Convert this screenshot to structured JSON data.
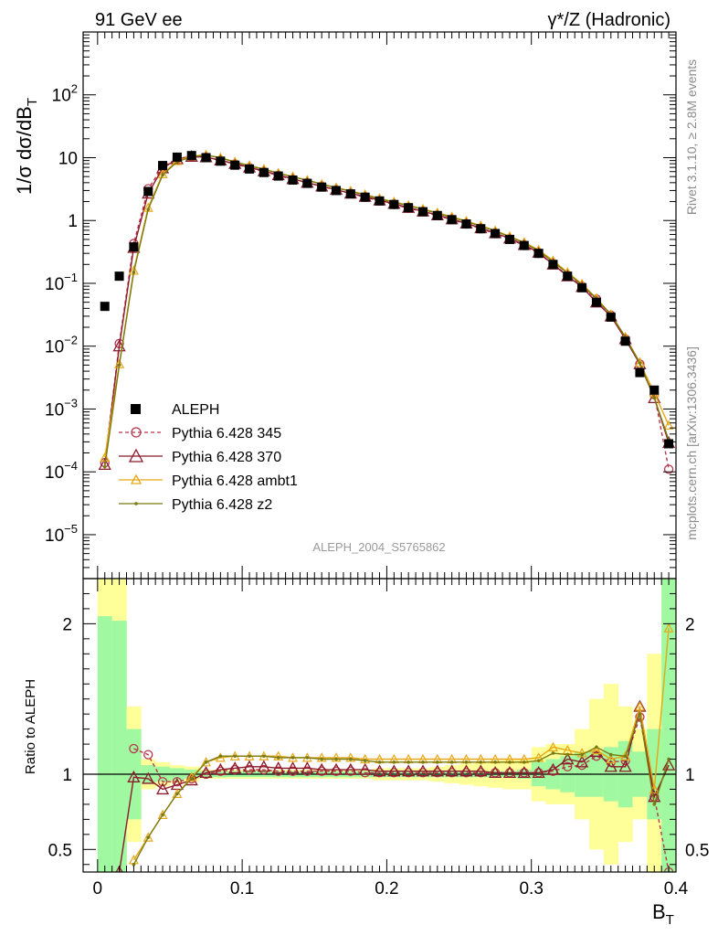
{
  "chart_data": [
    {
      "type": "scatter",
      "title_left": "91 GeV ee",
      "title_right": "γ*/Z (Hadronic)",
      "ylabel_main": "1/σ  dσ/dB",
      "ylabel_sub": "T",
      "yscale": "log",
      "ylim": [
        2e-06,
        1000
      ],
      "xlim": [
        -0.01,
        0.4
      ],
      "ytick_labels": [
        {
          "value": 1e-05,
          "base": "10",
          "exp": "−5"
        },
        {
          "value": 0.0001,
          "base": "10",
          "exp": "−4"
        },
        {
          "value": 0.001,
          "base": "10",
          "exp": "−3"
        },
        {
          "value": 0.01,
          "base": "10",
          "exp": "−2"
        },
        {
          "value": 0.1,
          "base": "10",
          "exp": "−1"
        },
        {
          "value": 1,
          "base": "1",
          "exp": ""
        },
        {
          "value": 10,
          "base": "10",
          "exp": ""
        },
        {
          "value": 100,
          "base": "10",
          "exp": "2"
        }
      ],
      "analysis_label": "ALEPH_2004_S5765862",
      "right_label_top": "Rivet 3.1.10, ≥ 2.8M events",
      "right_label_bottom": "mcplots.cern.ch [arXiv:1306.3436]",
      "legend": {
        "placement": "lower-left",
        "entries": [
          "ALEPH",
          "Pythia 6.428 345",
          "Pythia 6.428 370",
          "Pythia 6.428 ambt1",
          "Pythia 6.428 z2"
        ]
      },
      "data": {
        "name": "ALEPH",
        "x": [
          0.005,
          0.015,
          0.025,
          0.035,
          0.045,
          0.055,
          0.065,
          0.075,
          0.085,
          0.095,
          0.105,
          0.115,
          0.125,
          0.135,
          0.145,
          0.155,
          0.165,
          0.175,
          0.185,
          0.195,
          0.205,
          0.215,
          0.225,
          0.235,
          0.245,
          0.255,
          0.265,
          0.275,
          0.285,
          0.295,
          0.305,
          0.315,
          0.325,
          0.335,
          0.345,
          0.355,
          0.365,
          0.375,
          0.385,
          0.395
        ],
        "y": [
          0.043,
          0.13,
          0.38,
          2.9,
          7.5,
          10.2,
          10.8,
          10.0,
          8.8,
          7.6,
          6.6,
          5.8,
          5.1,
          4.4,
          3.9,
          3.4,
          3.0,
          2.65,
          2.35,
          2.05,
          1.8,
          1.6,
          1.38,
          1.2,
          1.03,
          0.88,
          0.74,
          0.62,
          0.5,
          0.4,
          0.3,
          0.2,
          0.13,
          0.085,
          0.05,
          0.029,
          0.012,
          0.0038,
          0.002,
          0.00028
        ]
      },
      "series": [
        {
          "name": "Pythia 6.428 345",
          "color": "#b8354a",
          "marker": "circle",
          "dash": "dashed",
          "y": [
            0.00014,
            0.011,
            0.43,
            3.2,
            7.1,
            9.7,
            10.4,
            10.1,
            9.0,
            7.9,
            6.9,
            6.0,
            5.2,
            4.5,
            4.0,
            3.5,
            3.05,
            2.7,
            2.35,
            2.05,
            1.8,
            1.57,
            1.38,
            1.2,
            1.03,
            0.88,
            0.74,
            0.62,
            0.51,
            0.4,
            0.3,
            0.2,
            0.135,
            0.09,
            0.056,
            0.031,
            0.013,
            0.0052,
            0.0017,
            0.00011
          ]
        },
        {
          "name": "Pythia 6.428 370",
          "color": "#8b1a2b",
          "marker": "triangle",
          "dash": "solid",
          "y": [
            0.00013,
            0.01,
            0.37,
            2.7,
            6.8,
            9.5,
            10.4,
            10.2,
            9.1,
            8.0,
            7.0,
            6.1,
            5.3,
            4.6,
            4.0,
            3.5,
            3.1,
            2.7,
            2.4,
            2.1,
            1.85,
            1.6,
            1.4,
            1.22,
            1.05,
            0.9,
            0.76,
            0.63,
            0.52,
            0.41,
            0.31,
            0.2,
            0.13,
            0.088,
            0.05,
            0.03,
            0.013,
            0.0052,
            0.0015,
            0.00029
          ]
        },
        {
          "name": "Pythia 6.428 ambt1",
          "color": "#e6a817",
          "marker": "triangle-small",
          "dash": "solid",
          "y": [
            0.00017,
            0.0052,
            0.16,
            1.6,
            5.5,
            8.9,
            10.6,
            11.1,
            10.0,
            8.6,
            7.5,
            6.6,
            5.7,
            5.0,
            4.4,
            3.8,
            3.35,
            2.95,
            2.6,
            2.25,
            1.98,
            1.75,
            1.53,
            1.33,
            1.15,
            0.98,
            0.83,
            0.69,
            0.56,
            0.45,
            0.34,
            0.23,
            0.15,
            0.098,
            0.058,
            0.032,
            0.014,
            0.0055,
            0.0018,
            0.00055
          ]
        },
        {
          "name": "Pythia 6.428 z2",
          "color": "#7a7a10",
          "marker": "dot",
          "dash": "solid",
          "y": [
            0.00012,
            0.005,
            0.15,
            1.5,
            5.3,
            8.6,
            10.3,
            11.0,
            9.9,
            8.5,
            7.4,
            6.5,
            5.65,
            4.95,
            4.35,
            3.8,
            3.3,
            2.9,
            2.55,
            2.2,
            1.95,
            1.72,
            1.5,
            1.3,
            1.12,
            0.96,
            0.81,
            0.68,
            0.55,
            0.44,
            0.33,
            0.22,
            0.145,
            0.095,
            0.057,
            0.032,
            0.014,
            0.0054,
            0.0015,
            0.00032
          ]
        }
      ]
    },
    {
      "type": "line",
      "ylabel": "Ratio to ALEPH",
      "xlabel_main": "B",
      "xlabel_sub": "T",
      "xlim": [
        -0.01,
        0.4
      ],
      "ylim": [
        0.35,
        2.3
      ],
      "xtick_labels": [
        {
          "value": 0,
          "label": "0"
        },
        {
          "value": 0.1,
          "label": "0.1"
        },
        {
          "value": 0.2,
          "label": "0.2"
        },
        {
          "value": 0.3,
          "label": "0.3"
        },
        {
          "value": 0.4,
          "label": "0.4"
        }
      ],
      "ytick_labels": [
        {
          "value": 0.5,
          "label": "0.5"
        },
        {
          "value": 1,
          "label": "1"
        },
        {
          "value": 2,
          "label": "2"
        }
      ],
      "bands": {
        "inner_color": "#a0f8a0",
        "outer_color": "#ffff99",
        "x_edges": [
          0.0,
          0.01,
          0.02,
          0.03,
          0.04,
          0.05,
          0.06,
          0.07,
          0.08,
          0.09,
          0.1,
          0.11,
          0.12,
          0.13,
          0.14,
          0.15,
          0.16,
          0.17,
          0.18,
          0.19,
          0.2,
          0.21,
          0.22,
          0.23,
          0.24,
          0.25,
          0.26,
          0.27,
          0.28,
          0.29,
          0.3,
          0.31,
          0.32,
          0.33,
          0.34,
          0.35,
          0.36,
          0.37,
          0.38,
          0.39,
          0.4
        ],
        "inner_half": [
          1.05,
          1.02,
          0.3,
          0.06,
          0.05,
          0.04,
          0.03,
          0.02,
          0.02,
          0.02,
          0.02,
          0.02,
          0.02,
          0.02,
          0.02,
          0.02,
          0.02,
          0.02,
          0.02,
          0.02,
          0.02,
          0.02,
          0.02,
          0.02,
          0.02,
          0.02,
          0.02,
          0.02,
          0.02,
          0.03,
          0.08,
          0.1,
          0.12,
          0.15,
          0.15,
          0.18,
          0.22,
          0.15,
          0.3,
          1.3
        ],
        "outer_half": [
          1.3,
          1.3,
          0.45,
          0.1,
          0.08,
          0.06,
          0.05,
          0.03,
          0.03,
          0.03,
          0.03,
          0.03,
          0.03,
          0.03,
          0.03,
          0.03,
          0.03,
          0.03,
          0.03,
          0.04,
          0.04,
          0.04,
          0.04,
          0.05,
          0.06,
          0.07,
          0.08,
          0.09,
          0.1,
          0.1,
          0.18,
          0.2,
          0.2,
          0.3,
          0.5,
          0.6,
          0.45,
          0.3,
          0.8,
          1.3
        ]
      },
      "series": [
        {
          "name": "Pythia 6.428 345",
          "color": "#b8354a",
          "marker": "circle",
          "dash": "dashed",
          "x": [
            0.025,
            0.035,
            0.045,
            0.055,
            0.065,
            0.075,
            0.085,
            0.095,
            0.105,
            0.115,
            0.125,
            0.135,
            0.145,
            0.155,
            0.165,
            0.175,
            0.185,
            0.195,
            0.205,
            0.215,
            0.225,
            0.235,
            0.245,
            0.255,
            0.265,
            0.275,
            0.285,
            0.295,
            0.305,
            0.315,
            0.325,
            0.335,
            0.345,
            0.355,
            0.365,
            0.375,
            0.385,
            0.395
          ],
          "y": [
            1.17,
            1.13,
            0.95,
            0.95,
            0.97,
            1.0,
            1.02,
            1.03,
            1.03,
            1.03,
            1.02,
            1.02,
            1.02,
            1.02,
            1.02,
            1.02,
            1.01,
            1.01,
            1.01,
            1.01,
            1.01,
            1.01,
            1.01,
            1.01,
            1.01,
            1.01,
            1.01,
            1.01,
            1.01,
            1.02,
            1.05,
            1.06,
            1.12,
            1.08,
            1.09,
            1.38,
            0.85,
            0.35
          ]
        },
        {
          "name": "Pythia 6.428 370",
          "color": "#8b1a2b",
          "marker": "triangle",
          "dash": "solid",
          "x": [
            0.015,
            0.025,
            0.035,
            0.045,
            0.055,
            0.065,
            0.075,
            0.085,
            0.095,
            0.105,
            0.115,
            0.125,
            0.135,
            0.145,
            0.155,
            0.165,
            0.175,
            0.185,
            0.195,
            0.205,
            0.215,
            0.225,
            0.235,
            0.245,
            0.255,
            0.265,
            0.275,
            0.285,
            0.295,
            0.305,
            0.315,
            0.325,
            0.335,
            0.345,
            0.355,
            0.365,
            0.375,
            0.385,
            0.395
          ],
          "y": [
            0.35,
            0.98,
            0.97,
            0.9,
            0.93,
            0.96,
            1.01,
            1.03,
            1.04,
            1.05,
            1.05,
            1.04,
            1.04,
            1.04,
            1.03,
            1.03,
            1.03,
            1.03,
            1.02,
            1.02,
            1.02,
            1.02,
            1.02,
            1.02,
            1.02,
            1.02,
            1.01,
            1.01,
            1.01,
            1.01,
            1.03,
            1.1,
            1.08,
            1.15,
            1.05,
            1.05,
            1.45,
            0.85,
            1.06
          ]
        },
        {
          "name": "Pythia 6.428 ambt1",
          "color": "#e6a817",
          "marker": "triangle-small",
          "dash": "solid",
          "x": [
            0.025,
            0.035,
            0.045,
            0.055,
            0.065,
            0.075,
            0.085,
            0.095,
            0.105,
            0.115,
            0.125,
            0.135,
            0.145,
            0.155,
            0.165,
            0.175,
            0.185,
            0.195,
            0.205,
            0.215,
            0.225,
            0.235,
            0.245,
            0.255,
            0.265,
            0.275,
            0.285,
            0.295,
            0.305,
            0.315,
            0.325,
            0.335,
            0.345,
            0.355,
            0.365,
            0.375,
            0.385,
            0.395
          ],
          "y": [
            0.43,
            0.58,
            0.73,
            0.87,
            0.98,
            1.08,
            1.11,
            1.12,
            1.12,
            1.12,
            1.12,
            1.11,
            1.11,
            1.11,
            1.11,
            1.11,
            1.1,
            1.1,
            1.1,
            1.1,
            1.1,
            1.1,
            1.1,
            1.1,
            1.1,
            1.1,
            1.1,
            1.1,
            1.11,
            1.18,
            1.16,
            1.14,
            1.16,
            1.1,
            1.12,
            1.45,
            0.9,
            1.97
          ]
        },
        {
          "name": "Pythia 6.428 z2",
          "color": "#7a7a10",
          "marker": "dot",
          "dash": "solid",
          "x": [
            0.025,
            0.035,
            0.045,
            0.055,
            0.065,
            0.075,
            0.085,
            0.095,
            0.105,
            0.115,
            0.125,
            0.135,
            0.145,
            0.155,
            0.165,
            0.175,
            0.185,
            0.195,
            0.205,
            0.215,
            0.225,
            0.235,
            0.245,
            0.255,
            0.265,
            0.275,
            0.285,
            0.295,
            0.305,
            0.315,
            0.325,
            0.335,
            0.345,
            0.355,
            0.365,
            0.375,
            0.385,
            0.395
          ],
          "y": [
            0.4,
            0.58,
            0.73,
            0.87,
            0.97,
            1.08,
            1.12,
            1.12,
            1.12,
            1.12,
            1.11,
            1.11,
            1.11,
            1.1,
            1.1,
            1.1,
            1.09,
            1.08,
            1.08,
            1.08,
            1.08,
            1.08,
            1.08,
            1.08,
            1.08,
            1.08,
            1.08,
            1.08,
            1.09,
            1.14,
            1.13,
            1.13,
            1.18,
            1.13,
            1.12,
            1.4,
            0.8,
            1.1
          ]
        }
      ]
    }
  ]
}
